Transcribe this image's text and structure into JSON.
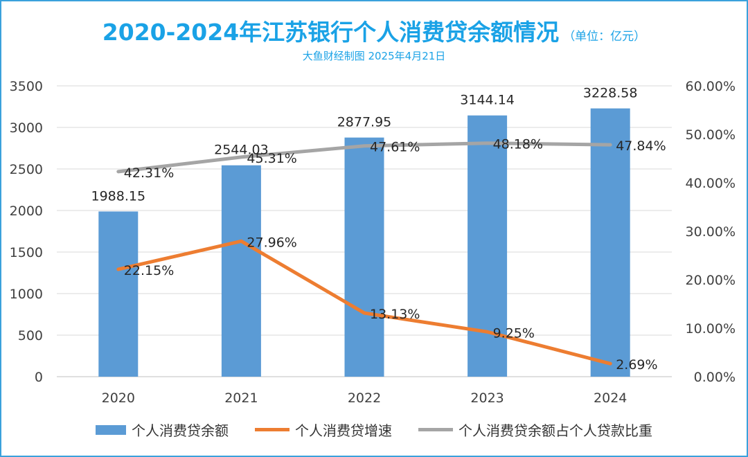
{
  "title": "2020-2024年江苏银行个人消费贷余额情况",
  "unit": "（单位：亿元）",
  "subtitle": "大鱼财经制图 2025年4月21日",
  "colors": {
    "frame": "#3aa1dc",
    "title": "#1aa2e6",
    "bar": "#5b9bd5",
    "growth": "#ed7d31",
    "share": "#a5a5a5",
    "grid": "#d9d9d9",
    "text": "#404040"
  },
  "chart_data": {
    "type": "bar",
    "categories": [
      "2020",
      "2021",
      "2022",
      "2023",
      "2024"
    ],
    "y_left": {
      "ticks": [
        "0",
        "500",
        "1000",
        "1500",
        "2000",
        "2500",
        "3000",
        "3500"
      ],
      "ylim": [
        0,
        3500
      ]
    },
    "y_right": {
      "ticks": [
        "0.00%",
        "10.00%",
        "20.00%",
        "30.00%",
        "40.00%",
        "50.00%",
        "60.00%"
      ],
      "ylim": [
        0,
        60
      ]
    },
    "grid": true,
    "legend_position": "bottom",
    "series": [
      {
        "name": "个人消费贷余额",
        "kind": "bar",
        "axis": "left",
        "values": [
          1988.15,
          2544.03,
          2877.95,
          3144.14,
          3228.58
        ],
        "labels": [
          "1988.15",
          "2544.03",
          "2877.95",
          "3144.14",
          "3228.58"
        ]
      },
      {
        "name": "个人消费贷增速",
        "kind": "line",
        "axis": "right",
        "values": [
          22.15,
          27.96,
          13.13,
          9.25,
          2.69
        ],
        "labels": [
          "22.15%",
          "27.96%",
          "13.13%",
          "9.25%",
          "2.69%"
        ]
      },
      {
        "name": "个人消费贷余额占个人贷款比重",
        "kind": "line",
        "axis": "right",
        "values": [
          42.31,
          45.31,
          47.61,
          48.18,
          47.84
        ],
        "labels": [
          "42.31%",
          "45.31%",
          "47.61%",
          "48.18%",
          "47.84%"
        ]
      }
    ]
  }
}
